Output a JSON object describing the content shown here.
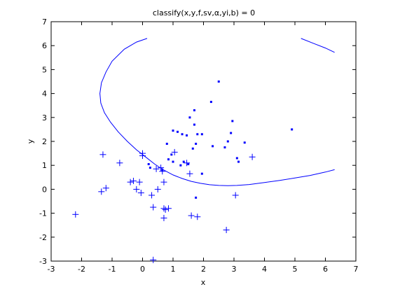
{
  "chart_data": {
    "type": "scatter",
    "title": "classify(x,y,f,sv,α,yi,b) = 0",
    "xlabel": "x",
    "ylabel": "y",
    "xlim": [
      -3,
      7
    ],
    "ylim": [
      -3,
      7
    ],
    "x_ticks": [
      "-3",
      "-2",
      "-1",
      "0",
      "1",
      "2",
      "3",
      "4",
      "5",
      "6",
      "7"
    ],
    "y_ticks": [
      "-3",
      "-2",
      "-1",
      "0",
      "1",
      "2",
      "3",
      "4",
      "5",
      "6",
      "7"
    ],
    "grid": false,
    "colors": {
      "series": "#0000ff",
      "axes": "#000000",
      "background": "#ffffff"
    },
    "series": [
      {
        "marker": "dot",
        "points": [
          [
            1.0,
            2.45
          ],
          [
            1.15,
            2.4
          ],
          [
            0.8,
            1.9
          ],
          [
            1.3,
            2.3
          ],
          [
            1.45,
            2.25
          ],
          [
            1.55,
            3.0
          ],
          [
            1.7,
            2.7
          ],
          [
            1.7,
            3.3
          ],
          [
            1.75,
            1.9
          ],
          [
            1.8,
            2.3
          ],
          [
            1.95,
            2.3
          ],
          [
            2.25,
            3.65
          ],
          [
            2.5,
            4.5
          ],
          [
            2.7,
            1.75
          ],
          [
            2.8,
            2.0
          ],
          [
            2.9,
            2.35
          ],
          [
            2.95,
            2.85
          ],
          [
            3.1,
            1.3
          ],
          [
            3.15,
            1.15
          ],
          [
            3.35,
            1.95
          ],
          [
            1.5,
            1.05
          ],
          [
            1.0,
            1.15
          ],
          [
            1.35,
            1.15
          ],
          [
            0.95,
            1.45
          ],
          [
            0.65,
            0.8
          ],
          [
            1.65,
            1.7
          ],
          [
            1.95,
            0.65
          ],
          [
            1.75,
            -0.35
          ],
          [
            0.2,
            1.05
          ],
          [
            0.85,
            1.25
          ],
          [
            4.9,
            2.5
          ],
          [
            2.3,
            1.8
          ],
          [
            0.25,
            0.9
          ],
          [
            1.25,
            1.0
          ]
        ]
      },
      {
        "marker": "plus",
        "points": [
          [
            -2.2,
            -1.05
          ],
          [
            -1.3,
            1.45
          ],
          [
            -1.35,
            -0.1
          ],
          [
            -1.2,
            0.05
          ],
          [
            -0.75,
            1.1
          ],
          [
            -0.4,
            0.3
          ],
          [
            -0.3,
            0.35
          ],
          [
            -0.1,
            0.3
          ],
          [
            -0.2,
            0.0
          ],
          [
            -0.05,
            -0.15
          ],
          [
            0.0,
            1.5
          ],
          [
            0.0,
            1.4
          ],
          [
            0.3,
            -0.25
          ],
          [
            0.35,
            -0.75
          ],
          [
            0.45,
            0.85
          ],
          [
            0.5,
            0.0
          ],
          [
            0.6,
            0.9
          ],
          [
            0.65,
            0.75
          ],
          [
            0.7,
            0.3
          ],
          [
            0.7,
            -0.8
          ],
          [
            0.75,
            -0.85
          ],
          [
            0.85,
            -0.8
          ],
          [
            0.7,
            -1.2
          ],
          [
            1.05,
            1.55
          ],
          [
            1.45,
            1.1
          ],
          [
            1.55,
            0.65
          ],
          [
            1.6,
            -1.1
          ],
          [
            1.8,
            -1.15
          ],
          [
            2.75,
            -1.7
          ],
          [
            3.05,
            -0.25
          ],
          [
            3.6,
            1.35
          ],
          [
            0.35,
            -2.95
          ]
        ]
      }
    ],
    "curves": [
      {
        "name": "boundary-left",
        "x": [
          0.15,
          -0.2,
          -0.6,
          -1.0,
          -1.2,
          -1.35,
          -1.4,
          -1.37,
          -1.25,
          -1.05,
          -0.8,
          -0.5,
          -0.2,
          0.1,
          0.4,
          0.7,
          1.0,
          1.3,
          1.6,
          1.9,
          2.2,
          2.5,
          2.8,
          3.1,
          3.5,
          4.0,
          4.5,
          5.0,
          5.5,
          6.0,
          6.3
        ],
        "y": [
          6.3,
          6.15,
          5.85,
          5.35,
          4.9,
          4.45,
          4.0,
          3.6,
          3.2,
          2.8,
          2.4,
          2.0,
          1.65,
          1.35,
          1.05,
          0.8,
          0.6,
          0.45,
          0.33,
          0.25,
          0.19,
          0.16,
          0.15,
          0.16,
          0.2,
          0.28,
          0.37,
          0.47,
          0.58,
          0.72,
          0.82
        ]
      },
      {
        "name": "boundary-right",
        "x": [
          5.2,
          5.6,
          6.0,
          6.3
        ],
        "y": [
          6.3,
          6.1,
          5.9,
          5.72
        ]
      }
    ]
  }
}
